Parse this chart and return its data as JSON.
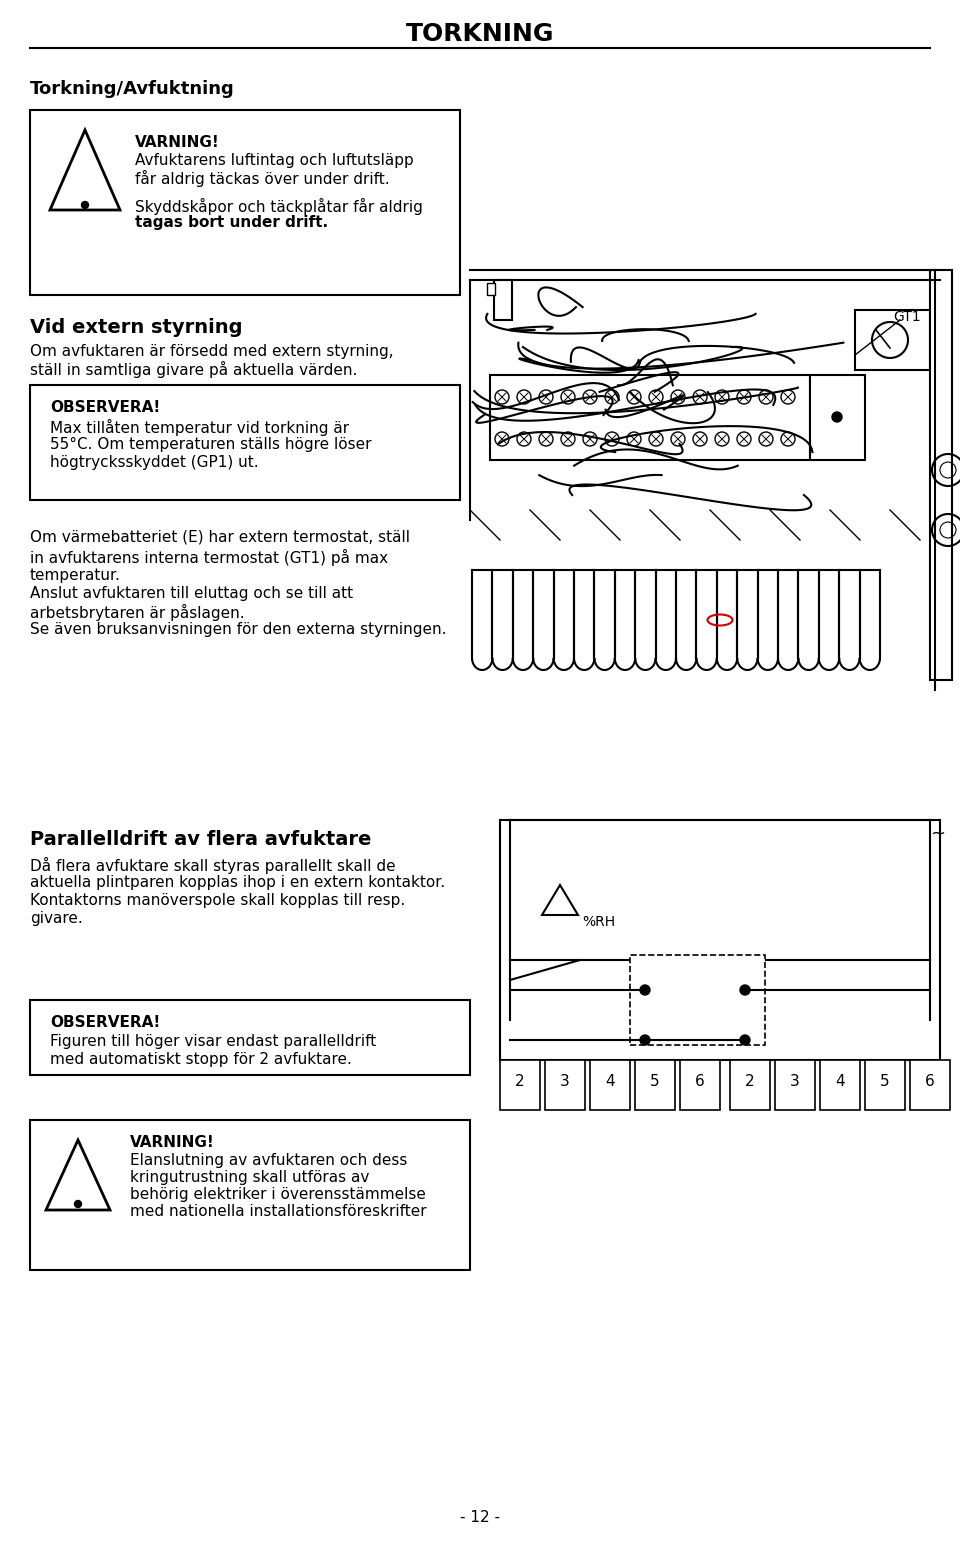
{
  "title": "TORKNING",
  "bg_color": "#ffffff",
  "text_color": "#000000",
  "page_number": "- 12 -",
  "section1_heading": "Torkning/Avfuktning",
  "warning1_title": "VARNING!",
  "warning1_line1": "Avfuktarens luftintag och luftutsläpp",
  "warning1_line2": "får aldrig täckas över under drift.",
  "warning1_line3": "Skyddskåpor och täckplåtar får aldrig",
  "warning1_line4": "tagas bort under drift.",
  "section2_heading": "Vid extern styrning",
  "section2_line1": "Om avfuktaren är försedd med extern styrning,",
  "section2_line2": "ställ in samtliga givare på aktuella värden.",
  "gt1_label": "GT1",
  "observera1_title": "OBSERVERA!",
  "observera1_line1": "Max tillåten temperatur vid torkning är",
  "observera1_line2": "55°C. Om temperaturen ställs högre löser",
  "observera1_line3": "högtrycksskyddet (GP1) ut.",
  "para1_line1": "Om värmebatteriet (E) har extern termostat, ställ",
  "para1_line2": "in avfuktarens interna termostat (GT1) på max",
  "para1_line3": "temperatur.",
  "para1_line4": "Anslut avfuktaren till eluttag och se till att",
  "para1_line5": "arbetsbrytaren är påslagen.",
  "para1_line6": "Se även bruksanvisningen för den externa styrningen.",
  "section3_heading": "Parallelldrift av flera avfuktare",
  "section3_line1": "Då flera avfuktare skall styras parallellt skall de",
  "section3_line2": "aktuella plintparen kopplas ihop i en extern kontaktor.",
  "section3_line3": "Kontaktorns manöverspole skall kopplas till resp.",
  "section3_line4": "givare.",
  "observera2_title": "OBSERVERA!",
  "observera2_line1": "Figuren till höger visar endast parallelldrift",
  "observera2_line2": "med automatiskt stopp för 2 avfuktare.",
  "warning2_title": "VARNING!",
  "warning2_line1": "Elanslutning av avfuktaren och dess",
  "warning2_line2": "kringutrustning skall utföras av",
  "warning2_line3": "behörig elektriker i överensstämmelse",
  "warning2_line4": "med nationella installationsföreskrifter"
}
